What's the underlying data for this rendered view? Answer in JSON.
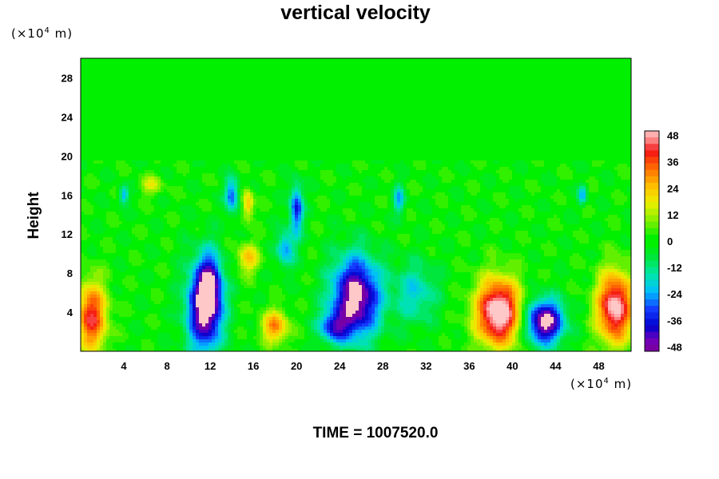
{
  "chart_data": {
    "type": "heatmap",
    "title": "vertical velocity",
    "ylabel": "Height",
    "x_unit": {
      "prefix": "(×10",
      "exp": "4",
      "suffix": " m)"
    },
    "y_unit": {
      "prefix": "(×10",
      "exp": "4",
      "suffix": " m)"
    },
    "footer": "TIME = 1007520.0",
    "xlim": [
      0,
      51
    ],
    "ylim": [
      0,
      30
    ],
    "x_ticks": [
      "4",
      "8",
      "12",
      "16",
      "20",
      "24",
      "28",
      "32",
      "36",
      "40",
      "44",
      "48"
    ],
    "y_ticks": [
      "4",
      "8",
      "12",
      "16",
      "20",
      "24",
      "28"
    ],
    "colorbar": {
      "range": [
        -50,
        50
      ],
      "ticks": [
        "48",
        "36",
        "24",
        "12",
        "0",
        "-12",
        "-24",
        "-36",
        "-48"
      ]
    },
    "features": [
      {
        "x": 11.5,
        "y": 4.5,
        "sx": 1.6,
        "sy": 4.5,
        "amp": -55
      },
      {
        "x": 12.0,
        "y": 7.0,
        "sx": 1.0,
        "sy": 3.0,
        "amp": -25
      },
      {
        "x": 25.5,
        "y": 5.5,
        "sx": 2.2,
        "sy": 4.0,
        "amp": -55
      },
      {
        "x": 23.5,
        "y": 2.5,
        "sx": 1.4,
        "sy": 1.5,
        "amp": -30
      },
      {
        "x": 43.0,
        "y": 3.0,
        "sx": 1.7,
        "sy": 2.2,
        "amp": -55
      },
      {
        "x": 38.7,
        "y": 4.0,
        "sx": 2.0,
        "sy": 3.3,
        "amp": 58
      },
      {
        "x": 49.5,
        "y": 4.5,
        "sx": 1.6,
        "sy": 3.5,
        "amp": 52
      },
      {
        "x": 1.0,
        "y": 3.5,
        "sx": 1.4,
        "sy": 3.5,
        "amp": 40
      },
      {
        "x": 18.0,
        "y": 2.5,
        "sx": 1.2,
        "sy": 1.6,
        "amp": 30
      },
      {
        "x": 15.5,
        "y": 9.5,
        "sx": 1.0,
        "sy": 1.5,
        "amp": 22
      },
      {
        "x": 20.0,
        "y": 14.5,
        "sx": 0.6,
        "sy": 2.5,
        "amp": -35
      },
      {
        "x": 14.0,
        "y": 16.0,
        "sx": 0.6,
        "sy": 1.8,
        "amp": -30
      },
      {
        "x": 19.0,
        "y": 10.5,
        "sx": 0.8,
        "sy": 1.8,
        "amp": -25
      },
      {
        "x": 4.0,
        "y": 16.0,
        "sx": 0.4,
        "sy": 0.9,
        "amp": -25
      },
      {
        "x": 29.5,
        "y": 15.5,
        "sx": 0.5,
        "sy": 1.5,
        "amp": -22
      },
      {
        "x": 46.5,
        "y": 16.0,
        "sx": 0.4,
        "sy": 1.0,
        "amp": -22
      },
      {
        "x": 15.5,
        "y": 15.0,
        "sx": 0.5,
        "sy": 1.5,
        "amp": 24
      },
      {
        "x": 31.0,
        "y": 6.0,
        "sx": 2.0,
        "sy": 3.0,
        "amp": -18
      },
      {
        "x": 6.5,
        "y": 17.0,
        "sx": 1.0,
        "sy": 1.0,
        "amp": 14
      }
    ]
  }
}
